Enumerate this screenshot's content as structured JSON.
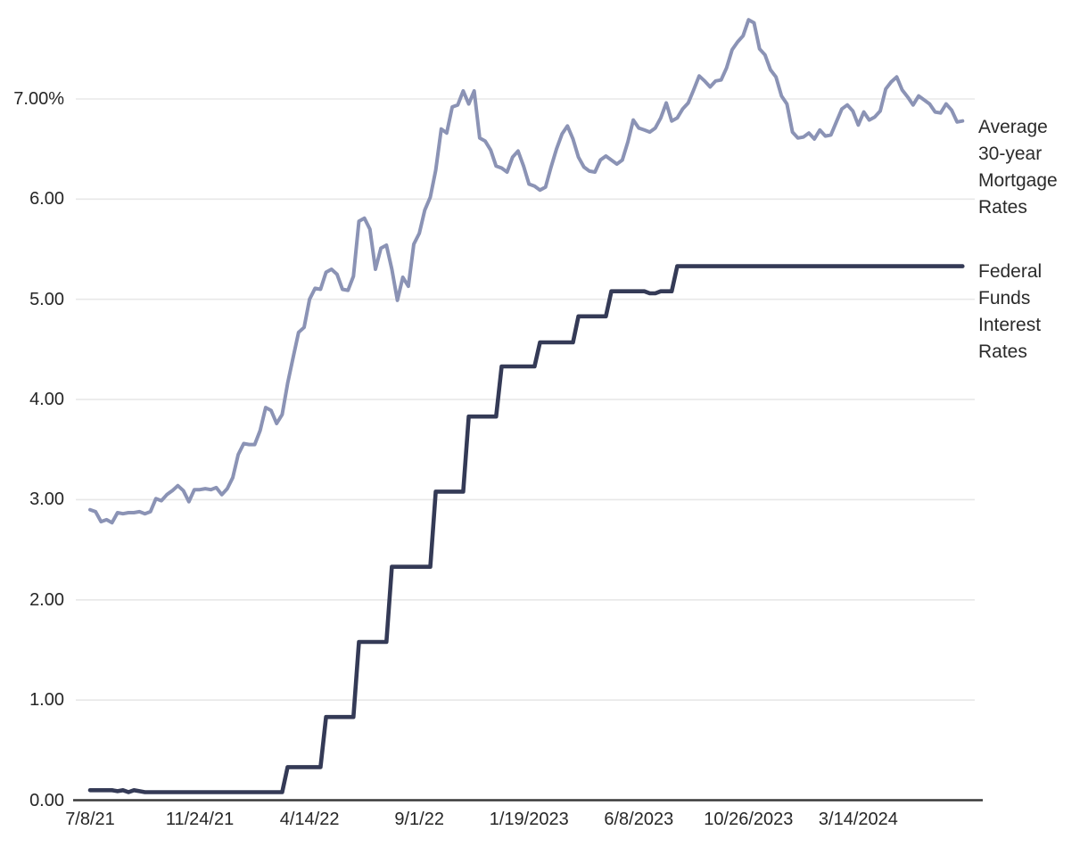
{
  "chart_data": {
    "type": "line",
    "title": "",
    "xlabel": "",
    "ylabel": "",
    "grid": true,
    "legend_position": "right-of-line-ends",
    "x_start": "7/8/21",
    "x_interval": "weekly",
    "x_tick_labels": [
      "7/8/21",
      "11/24/21",
      "4/14/22",
      "9/1/22",
      "1/19/2023",
      "6/8/2023",
      "10/26/2023",
      "3/14/2024"
    ],
    "x_tick_week_indices": [
      0,
      20,
      40,
      60,
      80,
      100,
      120,
      140
    ],
    "y_tick_labels": [
      "0.00",
      "1.00",
      "2.00",
      "3.00",
      "4.00",
      "5.00",
      "6.00",
      "7.00%"
    ],
    "y_tick_values": [
      0,
      1,
      2,
      3,
      4,
      5,
      6,
      7
    ],
    "ylim": [
      0,
      7.95
    ],
    "colors": {
      "mortgage_line": "#8B93B5",
      "fed_funds_line": "#343A56",
      "gridline": "#E8E8E8",
      "axis": "#3A3A3A",
      "text": "#262626"
    },
    "series": [
      {
        "name": "Average 30-year Mortgage Rates",
        "label_lines": "Average\n30-year\nMortgage\nRates",
        "color": "#8B93B5",
        "values": [
          2.9,
          2.88,
          2.78,
          2.8,
          2.77,
          2.87,
          2.86,
          2.87,
          2.87,
          2.88,
          2.86,
          2.88,
          3.01,
          2.99,
          3.05,
          3.09,
          3.14,
          3.09,
          2.98,
          3.1,
          3.1,
          3.11,
          3.1,
          3.12,
          3.05,
          3.11,
          3.22,
          3.45,
          3.56,
          3.55,
          3.55,
          3.69,
          3.92,
          3.89,
          3.76,
          3.85,
          4.16,
          4.42,
          4.67,
          4.72,
          5.0,
          5.11,
          5.1,
          5.27,
          5.3,
          5.25,
          5.1,
          5.09,
          5.23,
          5.78,
          5.81,
          5.7,
          5.3,
          5.51,
          5.54,
          5.3,
          4.99,
          5.22,
          5.13,
          5.55,
          5.66,
          5.89,
          6.02,
          6.29,
          6.7,
          6.66,
          6.92,
          6.94,
          7.08,
          6.95,
          7.08,
          6.61,
          6.58,
          6.49,
          6.33,
          6.31,
          6.27,
          6.42,
          6.48,
          6.33,
          6.15,
          6.13,
          6.09,
          6.12,
          6.32,
          6.5,
          6.65,
          6.73,
          6.6,
          6.42,
          6.32,
          6.28,
          6.27,
          6.39,
          6.43,
          6.39,
          6.35,
          6.39,
          6.57,
          6.79,
          6.71,
          6.69,
          6.67,
          6.71,
          6.81,
          6.96,
          6.78,
          6.81,
          6.9,
          6.96,
          7.09,
          7.23,
          7.18,
          7.12,
          7.18,
          7.19,
          7.31,
          7.49,
          7.57,
          7.63,
          7.79,
          7.76,
          7.5,
          7.44,
          7.29,
          7.22,
          7.03,
          6.95,
          6.67,
          6.61,
          6.62,
          6.66,
          6.6,
          6.69,
          6.63,
          6.64,
          6.77,
          6.9,
          6.94,
          6.88,
          6.74,
          6.87,
          6.79,
          6.82,
          6.88,
          7.1,
          7.17,
          7.22,
          7.09,
          7.02,
          6.94,
          7.03,
          6.99,
          6.95,
          6.87,
          6.86,
          6.95,
          6.89,
          6.77,
          6.78
        ]
      },
      {
        "name": "Federal Funds Interest Rates",
        "label_lines": "Federal\nFunds\nInterest\nRates",
        "color": "#343A56",
        "values": [
          0.1,
          0.1,
          0.1,
          0.1,
          0.1,
          0.09,
          0.1,
          0.08,
          0.1,
          0.09,
          0.08,
          0.08,
          0.08,
          0.08,
          0.08,
          0.08,
          0.08,
          0.08,
          0.08,
          0.08,
          0.08,
          0.08,
          0.08,
          0.08,
          0.08,
          0.08,
          0.08,
          0.08,
          0.08,
          0.08,
          0.08,
          0.08,
          0.08,
          0.08,
          0.08,
          0.08,
          0.33,
          0.33,
          0.33,
          0.33,
          0.33,
          0.33,
          0.33,
          0.83,
          0.83,
          0.83,
          0.83,
          0.83,
          0.83,
          1.58,
          1.58,
          1.58,
          1.58,
          1.58,
          1.58,
          2.33,
          2.33,
          2.33,
          2.33,
          2.33,
          2.33,
          2.33,
          2.33,
          3.08,
          3.08,
          3.08,
          3.08,
          3.08,
          3.08,
          3.83,
          3.83,
          3.83,
          3.83,
          3.83,
          3.83,
          4.33,
          4.33,
          4.33,
          4.33,
          4.33,
          4.33,
          4.33,
          4.57,
          4.57,
          4.57,
          4.57,
          4.57,
          4.57,
          4.57,
          4.83,
          4.83,
          4.83,
          4.83,
          4.83,
          4.83,
          5.08,
          5.08,
          5.08,
          5.08,
          5.08,
          5.08,
          5.08,
          5.06,
          5.06,
          5.08,
          5.08,
          5.08,
          5.33,
          5.33,
          5.33,
          5.33,
          5.33,
          5.33,
          5.33,
          5.33,
          5.33,
          5.33,
          5.33,
          5.33,
          5.33,
          5.33,
          5.33,
          5.33,
          5.33,
          5.33,
          5.33,
          5.33,
          5.33,
          5.33,
          5.33,
          5.33,
          5.33,
          5.33,
          5.33,
          5.33,
          5.33,
          5.33,
          5.33,
          5.33,
          5.33,
          5.33,
          5.33,
          5.33,
          5.33,
          5.33,
          5.33,
          5.33,
          5.33,
          5.33,
          5.33,
          5.33,
          5.33,
          5.33,
          5.33,
          5.33,
          5.33,
          5.33,
          5.33,
          5.33,
          5.33
        ]
      }
    ]
  }
}
